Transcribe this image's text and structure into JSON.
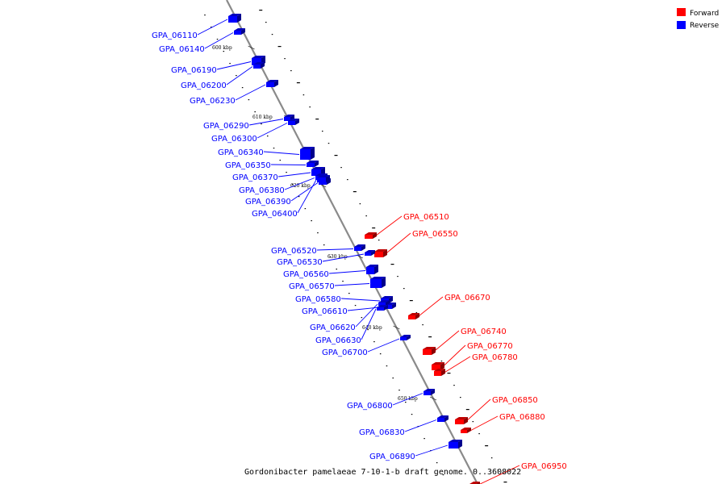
{
  "caption": "Gordonibacter pamelaeae 7-10-1-b draft genome.  0..3608022",
  "legend": {
    "forward": {
      "label": "Forward",
      "color": "#ff0000"
    },
    "reverse": {
      "label": "Reverse",
      "color": "#0000ff"
    }
  },
  "ticks": [
    {
      "kbp": 600,
      "label": "600 kbp"
    },
    {
      "kbp": 610,
      "label": "610 kbp"
    },
    {
      "kbp": 620,
      "label": "620 kbp"
    },
    {
      "kbp": 630,
      "label": "630 kbp"
    },
    {
      "kbp": 640,
      "label": "640 kbp"
    },
    {
      "kbp": 650,
      "label": "650 kbp"
    }
  ],
  "genes": [
    {
      "id": "GPA_06110",
      "strand": "reverse"
    },
    {
      "id": "GPA_06140",
      "strand": "reverse"
    },
    {
      "id": "GPA_06190",
      "strand": "reverse"
    },
    {
      "id": "GPA_06200",
      "strand": "reverse"
    },
    {
      "id": "GPA_06230",
      "strand": "reverse"
    },
    {
      "id": "GPA_06290",
      "strand": "reverse"
    },
    {
      "id": "GPA_06300",
      "strand": "reverse"
    },
    {
      "id": "GPA_06340",
      "strand": "reverse"
    },
    {
      "id": "GPA_06350",
      "strand": "reverse"
    },
    {
      "id": "GPA_06370",
      "strand": "reverse"
    },
    {
      "id": "GPA_06380",
      "strand": "reverse"
    },
    {
      "id": "GPA_06390",
      "strand": "reverse"
    },
    {
      "id": "GPA_06400",
      "strand": "reverse"
    },
    {
      "id": "GPA_06510",
      "strand": "forward"
    },
    {
      "id": "GPA_06550",
      "strand": "forward"
    },
    {
      "id": "GPA_06520",
      "strand": "reverse"
    },
    {
      "id": "GPA_06530",
      "strand": "reverse"
    },
    {
      "id": "GPA_06560",
      "strand": "reverse"
    },
    {
      "id": "GPA_06570",
      "strand": "reverse"
    },
    {
      "id": "GPA_06580",
      "strand": "reverse"
    },
    {
      "id": "GPA_06610",
      "strand": "reverse"
    },
    {
      "id": "GPA_06670",
      "strand": "forward"
    },
    {
      "id": "GPA_06620",
      "strand": "reverse"
    },
    {
      "id": "GPA_06630",
      "strand": "reverse"
    },
    {
      "id": "GPA_06700",
      "strand": "reverse"
    },
    {
      "id": "GPA_06740",
      "strand": "forward"
    },
    {
      "id": "GPA_06770",
      "strand": "forward"
    },
    {
      "id": "GPA_06780",
      "strand": "forward"
    },
    {
      "id": "GPA_06800",
      "strand": "reverse"
    },
    {
      "id": "GPA_06850",
      "strand": "forward"
    },
    {
      "id": "GPA_06880",
      "strand": "forward"
    },
    {
      "id": "GPA_06830",
      "strand": "reverse"
    },
    {
      "id": "GPA_06890",
      "strand": "reverse"
    },
    {
      "id": "GPA_06950",
      "strand": "forward"
    }
  ]
}
